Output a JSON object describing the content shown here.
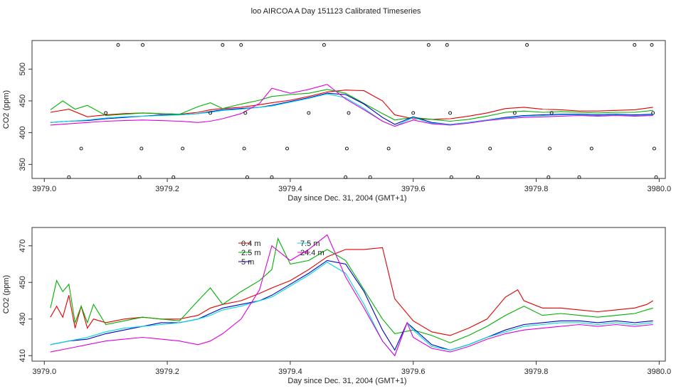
{
  "chart_data": [
    {
      "type": "line",
      "title": "loo AIRCOA A  Day 151123  Calibrated Timeseries",
      "xlabel": "Day since Dec. 31, 2004 (GMT+1)",
      "ylabel": "CO2 (ppm)",
      "xlim": [
        3978.98,
        3980.01
      ],
      "ylim": [
        328,
        545
      ],
      "xticks": [
        3979.0,
        3979.2,
        3979.4,
        3979.6,
        3979.8,
        3980.0
      ],
      "xtick_labels": [
        "3979.0",
        "3979.2",
        "3979.4",
        "3979.6",
        "3979.8",
        "3980.0"
      ],
      "yticks": [
        350,
        400,
        450,
        500
      ],
      "ytick_labels": [
        "350",
        "400",
        "450",
        "500"
      ],
      "legend": false,
      "grid": false,
      "colors": [
        "#e00000",
        "#00b000",
        "#0000cc",
        "#00d8e0",
        "#dd00dd"
      ],
      "series": [
        {
          "x": [
            3979.01,
            3979.04,
            3979.07,
            3979.1,
            3979.13,
            3979.16,
            3979.19,
            3979.22,
            3979.25,
            3979.27,
            3979.29,
            3979.32,
            3979.35,
            3979.37,
            3979.4,
            3979.43,
            3979.46,
            3979.49,
            3979.52,
            3979.55,
            3979.57,
            3979.6,
            3979.63,
            3979.66,
            3979.69,
            3979.72,
            3979.75,
            3979.78,
            3979.81,
            3979.84,
            3979.87,
            3979.9,
            3979.93,
            3979.96,
            3979.99
          ],
          "values": [
            432,
            437,
            425,
            428,
            430,
            431,
            430,
            429,
            432,
            436,
            438,
            440,
            444,
            447,
            451,
            457,
            464,
            467,
            466,
            450,
            428,
            422,
            421,
            422,
            426,
            431,
            438,
            440,
            437,
            436,
            434,
            434,
            435,
            436,
            440
          ]
        },
        {
          "x": [
            3979.01,
            3979.03,
            3979.05,
            3979.07,
            3979.1,
            3979.13,
            3979.16,
            3979.19,
            3979.22,
            3979.25,
            3979.27,
            3979.29,
            3979.32,
            3979.35,
            3979.37,
            3979.4,
            3979.43,
            3979.46,
            3979.49,
            3979.52,
            3979.55,
            3979.57,
            3979.6,
            3979.63,
            3979.66,
            3979.69,
            3979.72,
            3979.75,
            3979.78,
            3979.81,
            3979.84,
            3979.87,
            3979.9,
            3979.93,
            3979.96,
            3979.99
          ],
          "values": [
            436,
            450,
            437,
            443,
            427,
            429,
            431,
            430,
            429,
            441,
            447,
            438,
            445,
            451,
            457,
            460,
            462,
            468,
            462,
            446,
            430,
            420,
            424,
            421,
            418,
            421,
            426,
            432,
            434,
            432,
            433,
            432,
            431,
            432,
            432,
            435
          ]
        },
        {
          "x": [
            3979.01,
            3979.04,
            3979.07,
            3979.1,
            3979.13,
            3979.16,
            3979.19,
            3979.22,
            3979.25,
            3979.27,
            3979.29,
            3979.32,
            3979.35,
            3979.37,
            3979.4,
            3979.43,
            3979.46,
            3979.49,
            3979.52,
            3979.55,
            3979.57,
            3979.6,
            3979.63,
            3979.66,
            3979.69,
            3979.72,
            3979.75,
            3979.78,
            3979.81,
            3979.84,
            3979.87,
            3979.9,
            3979.93,
            3979.96,
            3979.99
          ],
          "values": [
            416,
            418,
            419,
            422,
            424,
            426,
            428,
            428,
            430,
            433,
            436,
            438,
            440,
            443,
            449,
            455,
            462,
            460,
            445,
            424,
            413,
            425,
            416,
            413,
            416,
            420,
            424,
            427,
            428,
            429,
            429,
            428,
            429,
            428,
            429
          ]
        },
        {
          "x": [
            3979.01,
            3979.04,
            3979.07,
            3979.1,
            3979.13,
            3979.16,
            3979.19,
            3979.22,
            3979.25,
            3979.27,
            3979.29,
            3979.32,
            3979.35,
            3979.37,
            3979.4,
            3979.43,
            3979.46,
            3979.49,
            3979.52,
            3979.55,
            3979.57,
            3979.6,
            3979.63,
            3979.66,
            3979.69,
            3979.72,
            3979.75,
            3979.78,
            3979.81,
            3979.84,
            3979.87,
            3979.9,
            3979.93,
            3979.96,
            3979.99
          ],
          "values": [
            416,
            418,
            420,
            423,
            425,
            426,
            427,
            428,
            430,
            432,
            435,
            437,
            440,
            442,
            448,
            454,
            461,
            455,
            438,
            418,
            410,
            424,
            415,
            413,
            416,
            420,
            423,
            426,
            427,
            428,
            428,
            427,
            428,
            427,
            428
          ]
        },
        {
          "x": [
            3979.01,
            3979.04,
            3979.07,
            3979.1,
            3979.13,
            3979.16,
            3979.19,
            3979.22,
            3979.25,
            3979.27,
            3979.29,
            3979.32,
            3979.35,
            3979.37,
            3979.4,
            3979.43,
            3979.46,
            3979.49,
            3979.52,
            3979.55,
            3979.57,
            3979.6,
            3979.63,
            3979.66,
            3979.69,
            3979.72,
            3979.75,
            3979.78,
            3979.81,
            3979.84,
            3979.87,
            3979.9,
            3979.93,
            3979.96,
            3979.99
          ],
          "values": [
            412,
            414,
            416,
            418,
            419,
            420,
            419,
            418,
            416,
            418,
            422,
            430,
            446,
            470,
            462,
            468,
            476,
            453,
            436,
            418,
            410,
            420,
            414,
            412,
            415,
            419,
            422,
            424,
            425,
            426,
            427,
            426,
            427,
            426,
            427
          ]
        }
      ],
      "markers": {
        "x": [
          3979.04,
          3979.06,
          3979.1,
          3979.12,
          3979.155,
          3979.158,
          3979.16,
          3979.21,
          3979.225,
          3979.27,
          3979.29,
          3979.32,
          3979.325,
          3979.327,
          3979.33,
          3979.37,
          3979.395,
          3979.43,
          3979.455,
          3979.49,
          3979.492,
          3979.495,
          3979.53,
          3979.56,
          3979.6,
          3979.625,
          3979.655,
          3979.658,
          3979.66,
          3979.662,
          3979.705,
          3979.725,
          3979.765,
          3979.785,
          3979.82,
          3979.822,
          3979.825,
          3979.87,
          3979.89,
          3979.96,
          3979.988,
          3979.99,
          3979.992,
          3979.995
        ],
        "values": [
          330,
          375,
          431,
          538,
          330,
          375,
          538,
          330,
          375,
          431,
          538,
          538,
          375,
          431,
          330,
          330,
          375,
          431,
          538,
          330,
          375,
          431,
          330,
          375,
          431,
          538,
          538,
          375,
          431,
          330,
          330,
          375,
          431,
          538,
          330,
          375,
          431,
          330,
          375,
          538,
          538,
          431,
          375,
          330
        ]
      }
    },
    {
      "type": "line",
      "xlabel": "Day since Dec. 31, 2004 (GMT+1)",
      "ylabel": "CO2 (ppm)",
      "xlim": [
        3978.98,
        3980.01
      ],
      "ylim": [
        407,
        480
      ],
      "xticks": [
        3979.0,
        3979.2,
        3979.4,
        3979.6,
        3979.8,
        3980.0
      ],
      "xtick_labels": [
        "3979.0",
        "3979.2",
        "3979.4",
        "3979.6",
        "3979.8",
        "3980.0"
      ],
      "yticks": [
        410,
        430,
        450,
        470
      ],
      "ytick_labels": [
        "410",
        "430",
        "450",
        "470"
      ],
      "legend": "top-center",
      "grid": false,
      "series": [
        {
          "name": "0.4 m",
          "color": "#e00000",
          "x": [
            3979.01,
            3979.02,
            3979.03,
            3979.04,
            3979.05,
            3979.06,
            3979.07,
            3979.08,
            3979.1,
            3979.13,
            3979.16,
            3979.19,
            3979.22,
            3979.25,
            3979.27,
            3979.29,
            3979.32,
            3979.35,
            3979.37,
            3979.4,
            3979.43,
            3979.46,
            3979.49,
            3979.52,
            3979.55,
            3979.57,
            3979.6,
            3979.63,
            3979.66,
            3979.69,
            3979.72,
            3979.75,
            3979.77,
            3979.78,
            3979.81,
            3979.84,
            3979.87,
            3979.9,
            3979.93,
            3979.96,
            3979.98,
            3979.99
          ],
          "values": [
            431,
            437,
            431,
            443,
            425,
            437,
            425,
            430,
            428,
            430,
            431,
            430,
            430,
            432,
            436,
            438,
            440,
            444,
            447,
            451,
            457,
            464,
            468,
            468,
            469,
            441,
            429,
            423,
            421,
            425,
            430,
            442,
            446,
            440,
            436,
            436,
            435,
            434,
            435,
            436,
            438,
            440
          ]
        },
        {
          "name": "2.5 m",
          "color": "#00b000",
          "x": [
            3979.01,
            3979.02,
            3979.03,
            3979.04,
            3979.05,
            3979.06,
            3979.07,
            3979.08,
            3979.1,
            3979.13,
            3979.16,
            3979.19,
            3979.22,
            3979.25,
            3979.27,
            3979.29,
            3979.32,
            3979.35,
            3979.37,
            3979.38,
            3979.4,
            3979.43,
            3979.46,
            3979.49,
            3979.52,
            3979.55,
            3979.57,
            3979.6,
            3979.63,
            3979.66,
            3979.69,
            3979.72,
            3979.75,
            3979.78,
            3979.81,
            3979.84,
            3979.87,
            3979.9,
            3979.93,
            3979.96,
            3979.99
          ],
          "values": [
            436,
            451,
            445,
            449,
            428,
            437,
            428,
            438,
            427,
            429,
            431,
            430,
            429,
            440,
            447,
            438,
            445,
            451,
            457,
            474,
            460,
            462,
            468,
            462,
            446,
            430,
            422,
            424,
            421,
            417,
            421,
            426,
            432,
            437,
            432,
            433,
            432,
            431,
            432,
            433,
            436
          ]
        },
        {
          "name": "5 m",
          "color": "#0000cc",
          "x": [
            3979.01,
            3979.04,
            3979.07,
            3979.1,
            3979.13,
            3979.16,
            3979.19,
            3979.22,
            3979.25,
            3979.27,
            3979.29,
            3979.32,
            3979.35,
            3979.37,
            3979.4,
            3979.43,
            3979.46,
            3979.49,
            3979.52,
            3979.55,
            3979.57,
            3979.59,
            3979.6,
            3979.63,
            3979.66,
            3979.69,
            3979.72,
            3979.75,
            3979.78,
            3979.81,
            3979.84,
            3979.87,
            3979.9,
            3979.93,
            3979.96,
            3979.99
          ],
          "values": [
            416,
            418,
            419,
            422,
            424,
            426,
            428,
            428,
            430,
            433,
            436,
            438,
            440,
            443,
            449,
            455,
            462,
            460,
            445,
            424,
            413,
            428,
            425,
            416,
            413,
            416,
            420,
            424,
            427,
            428,
            429,
            429,
            428,
            429,
            428,
            429
          ]
        },
        {
          "name": "7.5 m",
          "color": "#00d8e0",
          "x": [
            3979.01,
            3979.04,
            3979.07,
            3979.1,
            3979.13,
            3979.16,
            3979.19,
            3979.22,
            3979.25,
            3979.27,
            3979.29,
            3979.32,
            3979.35,
            3979.37,
            3979.4,
            3979.43,
            3979.46,
            3979.49,
            3979.52,
            3979.55,
            3979.57,
            3979.59,
            3979.6,
            3979.63,
            3979.66,
            3979.69,
            3979.72,
            3979.75,
            3979.78,
            3979.81,
            3979.84,
            3979.87,
            3979.9,
            3979.93,
            3979.96,
            3979.99
          ],
          "values": [
            416,
            418,
            420,
            423,
            425,
            426,
            427,
            428,
            430,
            432,
            435,
            437,
            440,
            442,
            448,
            454,
            461,
            455,
            438,
            418,
            410,
            428,
            424,
            415,
            413,
            416,
            420,
            423,
            426,
            427,
            428,
            428,
            427,
            428,
            427,
            428
          ]
        },
        {
          "name": "24.4 m",
          "color": "#dd00dd",
          "x": [
            3979.01,
            3979.04,
            3979.07,
            3979.1,
            3979.13,
            3979.16,
            3979.19,
            3979.22,
            3979.25,
            3979.27,
            3979.29,
            3979.32,
            3979.35,
            3979.37,
            3979.4,
            3979.43,
            3979.46,
            3979.49,
            3979.52,
            3979.55,
            3979.57,
            3979.59,
            3979.6,
            3979.63,
            3979.66,
            3979.69,
            3979.72,
            3979.75,
            3979.78,
            3979.81,
            3979.84,
            3979.87,
            3979.9,
            3979.93,
            3979.96,
            3979.99
          ],
          "values": [
            412,
            414,
            416,
            418,
            419,
            420,
            419,
            418,
            416,
            418,
            422,
            430,
            446,
            470,
            462,
            468,
            476,
            453,
            436,
            418,
            410,
            428,
            420,
            414,
            412,
            415,
            419,
            422,
            424,
            425,
            426,
            427,
            426,
            427,
            426,
            427
          ]
        }
      ]
    }
  ]
}
